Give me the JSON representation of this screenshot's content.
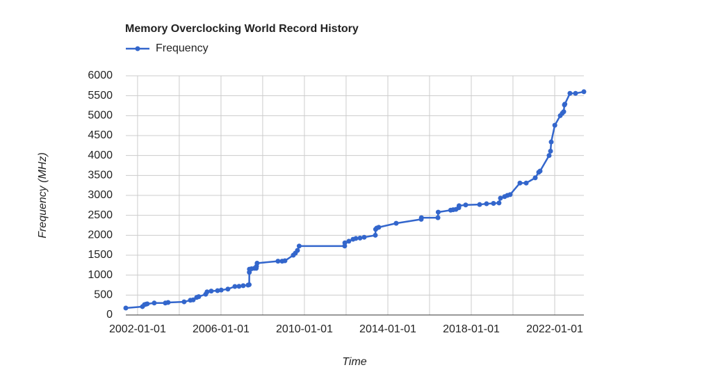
{
  "chart_data": {
    "type": "line",
    "title": "Memory Overclocking World Record History",
    "x_label": "Time",
    "y_label": "Frequency (MHz)",
    "legend": "top-left",
    "grid": true,
    "x": [
      "2001-06-09",
      "2002-03-27",
      "2002-05-02",
      "2002-05-27",
      "2002-06-20",
      "2002-10-20",
      "2003-05-02",
      "2003-06-20",
      "2004-03-26",
      "2004-07-14",
      "2004-09-01",
      "2004-11-01",
      "2004-12-07",
      "2005-04-08",
      "2005-05-02",
      "2005-07-14",
      "2005-11-01",
      "2006-01-05",
      "2006-05-02",
      "2006-09-01",
      "2006-11-13",
      "2007-01-25",
      "2007-04-20",
      "2007-05-10",
      "2007-05-12",
      "2007-05-14",
      "2007-06-20",
      "2007-08-08",
      "2007-09-10",
      "2007-09-15",
      "2007-09-25",
      "2008-09-25",
      "2008-12-07",
      "2009-01-25",
      "2009-06-20",
      "2009-07-26",
      "2009-09-01",
      "2009-10-01",
      "2011-12-07",
      "2011-12-10",
      "2012-02-18",
      "2012-05-02",
      "2012-06-20",
      "2012-09-01",
      "2012-11-13",
      "2013-05-27",
      "2013-06-01",
      "2013-06-20",
      "2013-07-26",
      "2014-05-27",
      "2015-08-08",
      "2015-08-12",
      "2016-05-27",
      "2016-06-01",
      "2017-01-05",
      "2017-02-18",
      "2017-04-08",
      "2017-05-27",
      "2017-06-01",
      "2017-09-25",
      "2018-05-27",
      "2018-09-25",
      "2019-01-25",
      "2019-05-02",
      "2019-05-27",
      "2019-08-08",
      "2019-09-25",
      "2019-11-13",
      "2020-05-02",
      "2020-08-20",
      "2021-01-25",
      "2021-03-27",
      "2021-04-20",
      "2021-09-25",
      "2021-10-20",
      "2021-11-01",
      "2022-01-03",
      "2022-04-08",
      "2022-05-14",
      "2022-06-08",
      "2022-06-20",
      "2022-06-28",
      "2022-09-25",
      "2023-01-01",
      "2023-05-27"
    ],
    "series": [
      {
        "name": "Frequency",
        "color": "#3366cc",
        "values": [
          175,
          210,
          260,
          270,
          280,
          300,
          300,
          315,
          330,
          370,
          380,
          440,
          460,
          520,
          580,
          600,
          610,
          625,
          650,
          715,
          720,
          735,
          750,
          760,
          1070,
          1150,
          1160,
          1170,
          1170,
          1220,
          1300,
          1350,
          1350,
          1360,
          1500,
          1550,
          1620,
          1730,
          1730,
          1810,
          1850,
          1900,
          1920,
          1930,
          1950,
          2000,
          2150,
          2180,
          2200,
          2300,
          2400,
          2440,
          2440,
          2580,
          2630,
          2640,
          2650,
          2690,
          2740,
          2760,
          2770,
          2790,
          2800,
          2810,
          2930,
          2970,
          3000,
          3020,
          3310,
          3310,
          3440,
          3580,
          3610,
          4000,
          4110,
          4340,
          4760,
          5000,
          5060,
          5100,
          5270,
          5290,
          5560,
          5560,
          5600
        ]
      }
    ],
    "xlim": [
      "2001-06-09",
      "2023-05-27"
    ],
    "xticks": [
      "2002-01-01",
      "2006-01-01",
      "2010-01-01",
      "2014-01-01",
      "2018-01-01",
      "2022-01-01"
    ],
    "x_minor_gridlines": [
      "2004-01-01",
      "2008-01-01",
      "2012-01-01",
      "2016-01-01",
      "2020-01-01"
    ],
    "ylim": [
      0,
      6000
    ],
    "yticks": [
      0,
      500,
      1000,
      1500,
      2000,
      2500,
      3000,
      3500,
      4000,
      4500,
      5000,
      5500,
      6000
    ]
  }
}
